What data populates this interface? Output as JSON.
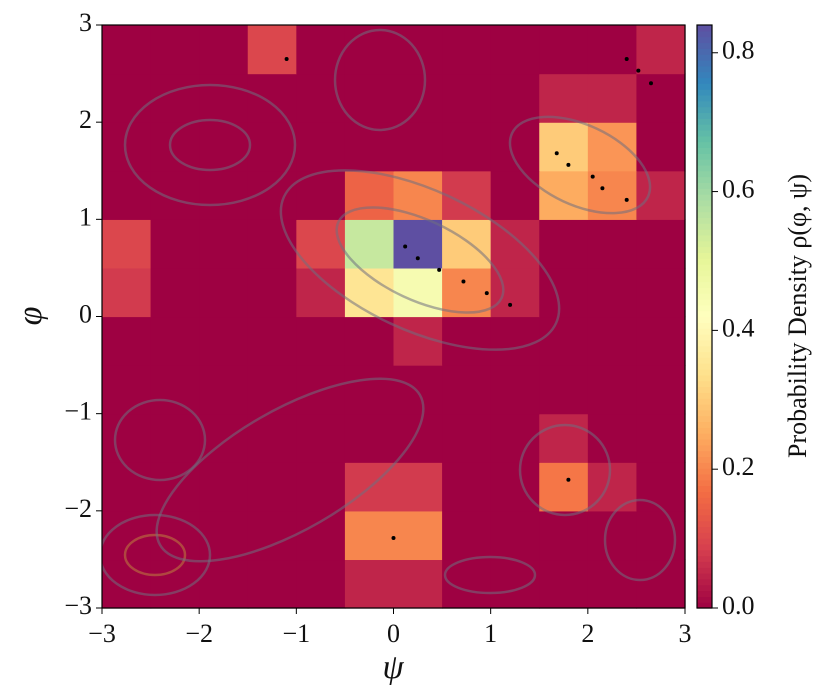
{
  "chart_data": {
    "type": "heatmap",
    "xlabel": "ψ",
    "ylabel": "φ",
    "colorbar_label": "Probability Density ρ(φ, ψ)",
    "colormap": "Spectral_r",
    "xlim": [
      -3,
      3
    ],
    "ylim": [
      -3,
      3
    ],
    "xticks": [
      {
        "value": -3,
        "label": "−3"
      },
      {
        "value": -2,
        "label": "−2"
      },
      {
        "value": -1,
        "label": "−1"
      },
      0,
      1,
      2,
      3
    ],
    "yticks": [
      {
        "value": -3,
        "label": "−3"
      },
      {
        "value": -2,
        "label": "−2"
      },
      {
        "value": -1,
        "label": "−1"
      },
      0,
      1,
      2,
      3
    ],
    "clim": [
      0,
      0.84
    ],
    "cticks": [
      {
        "value": 0,
        "label": "0.0"
      },
      {
        "value": 0.2,
        "label": "0.2"
      },
      {
        "value": 0.4,
        "label": "0.4"
      },
      {
        "value": 0.6,
        "label": "0.6"
      },
      {
        "value": 0.8,
        "label": "0.8"
      }
    ],
    "z": [
      [
        0,
        0,
        0,
        0,
        0,
        0.05,
        0.05,
        0,
        0,
        0,
        0,
        0
      ],
      [
        0,
        0,
        0,
        0,
        0,
        0.2,
        0.2,
        0,
        0,
        0,
        0,
        0
      ],
      [
        0,
        0,
        0,
        0,
        0,
        0.08,
        0.08,
        0,
        0,
        0.18,
        0.05,
        0
      ],
      [
        0,
        0,
        0,
        0,
        0,
        0,
        0,
        0,
        0,
        0.05,
        0,
        0
      ],
      [
        0,
        0,
        0,
        0,
        0,
        0,
        0,
        0,
        0,
        0,
        0,
        0
      ],
      [
        0,
        0,
        0,
        0,
        0,
        0,
        0.05,
        0,
        0,
        0,
        0,
        0
      ],
      [
        0.08,
        0,
        0,
        0,
        0.05,
        0.35,
        0.45,
        0.2,
        0.05,
        0,
        0,
        0
      ],
      [
        0.1,
        0,
        0,
        0,
        0.1,
        0.55,
        0.84,
        0.3,
        0.05,
        0,
        0,
        0
      ],
      [
        0,
        0,
        0,
        0,
        0,
        0.15,
        0.2,
        0.08,
        0,
        0.25,
        0.2,
        0.05
      ],
      [
        0,
        0,
        0,
        0,
        0,
        0,
        0,
        0,
        0,
        0.3,
        0.22,
        0
      ],
      [
        0,
        0,
        0,
        0,
        0,
        0,
        0,
        0,
        0,
        0.05,
        0.05,
        0
      ],
      [
        0,
        0,
        0,
        0.1,
        0,
        0,
        0,
        0,
        0,
        0,
        0,
        0.05
      ]
    ],
    "points": {
      "x": [
        -1.1,
        2.4,
        2.52,
        2.65,
        1.68,
        1.8,
        2.05,
        2.15,
        2.4,
        0.12,
        0.25,
        0.47,
        0.72,
        0.96,
        1.2,
        0,
        1.8
      ],
      "y": [
        2.65,
        2.65,
        2.53,
        2.4,
        1.68,
        1.56,
        1.44,
        1.32,
        1.2,
        0.72,
        0.6,
        0.48,
        0.36,
        0.24,
        0.12,
        -2.28,
        -1.68
      ],
      "color": "#000000"
    }
  }
}
